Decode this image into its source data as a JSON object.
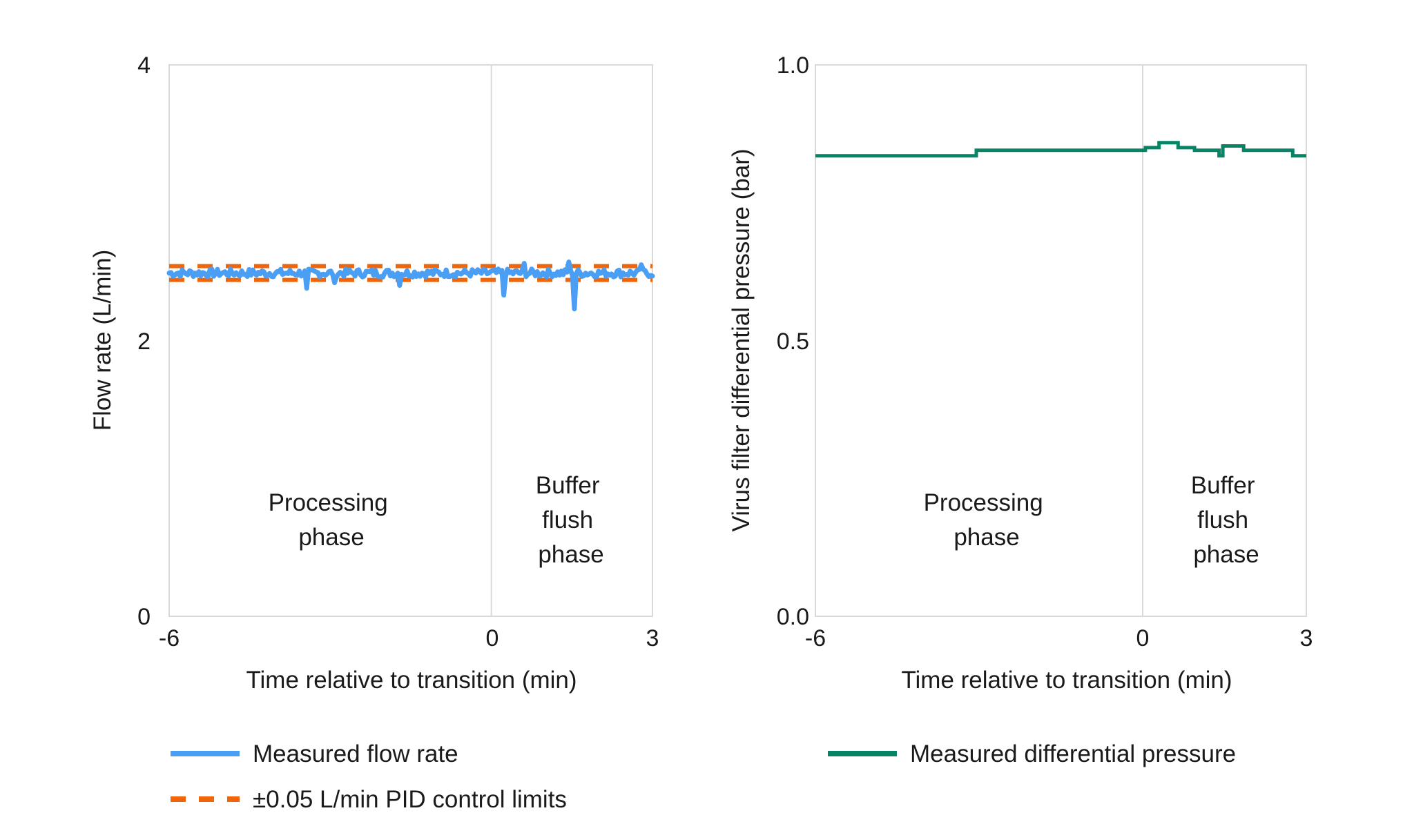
{
  "chart_data": [
    {
      "type": "line",
      "title": "",
      "xlabel": "Time relative to transition (min)",
      "ylabel": "Flow rate (L/min)",
      "xlim": [
        -6,
        3
      ],
      "ylim": [
        0,
        4
      ],
      "xticks": [
        "-6",
        "0",
        "3"
      ],
      "yticks": [
        "0",
        "2",
        "4"
      ],
      "grid": false,
      "vline_at": 0,
      "annotations": [
        {
          "text": [
            "Processing",
            "phase"
          ],
          "x": -3,
          "y": 0.75
        },
        {
          "text": [
            "Buffer",
            "flush",
            "phase"
          ],
          "x": 1.5,
          "y": 0.75
        }
      ],
      "legend_position": "bottom",
      "series": [
        {
          "name": "Measured flow rate",
          "color": "#4A9FF5",
          "style": "solid",
          "setpoint": 2.49,
          "noise_amplitude": 0.03,
          "spikes": [
            {
              "x": -3.43,
              "y": 2.38
            },
            {
              "x": -2.91,
              "y": 2.42
            },
            {
              "x": -1.71,
              "y": 2.4
            },
            {
              "x": 0.23,
              "y": 2.33
            },
            {
              "x": 0.6,
              "y": 2.56
            },
            {
              "x": 1.45,
              "y": 2.57
            },
            {
              "x": 1.53,
              "y": 2.23
            },
            {
              "x": 2.8,
              "y": 2.55
            }
          ]
        },
        {
          "name": "±0.05 L/min PID control limits",
          "color": "#F0640A",
          "style": "dashed",
          "upper": 2.54,
          "lower": 2.44
        }
      ]
    },
    {
      "type": "line",
      "title": "",
      "xlabel": "Time relative to transition (min)",
      "ylabel": "Virus filter differential pressure (bar)",
      "xlim": [
        -6,
        3
      ],
      "ylim": [
        0,
        1
      ],
      "xticks": [
        "-6",
        "0",
        "3"
      ],
      "yticks": [
        "0.0",
        "0.5",
        "1.0"
      ],
      "grid": false,
      "vline_at": 0,
      "annotations": [
        {
          "text": [
            "Processing",
            "phase"
          ],
          "x": -3,
          "y": 0.19
        },
        {
          "text": [
            "Buffer",
            "flush",
            "phase"
          ],
          "x": 1.5,
          "y": 0.19
        }
      ],
      "legend_position": "bottom",
      "series": [
        {
          "name": "Measured differential pressure",
          "color": "#078466",
          "style": "step",
          "x": [
            -6,
            -3.05,
            0.05,
            0.3,
            0.65,
            0.95,
            1.4,
            1.47,
            1.85,
            2.75,
            3.0
          ],
          "y": [
            0.835,
            0.845,
            0.85,
            0.859,
            0.85,
            0.845,
            0.835,
            0.853,
            0.845,
            0.835,
            0.835
          ]
        }
      ]
    }
  ]
}
